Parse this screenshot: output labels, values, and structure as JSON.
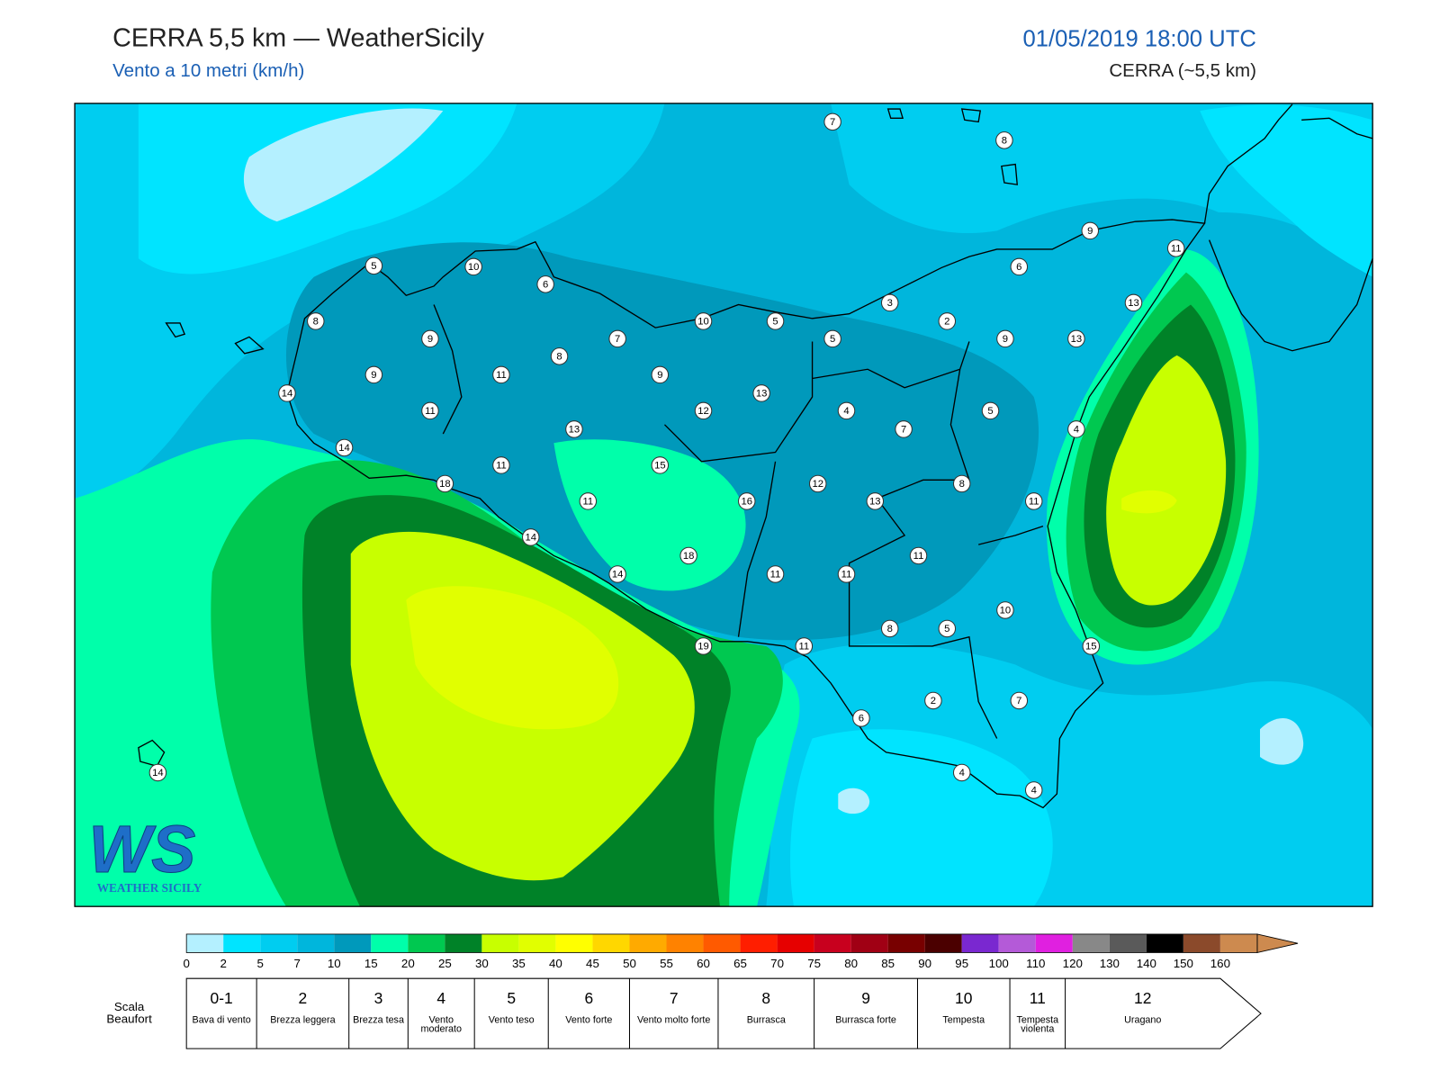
{
  "header": {
    "title": "CERRA 5,5 km — WeatherSicily",
    "subtitle": "Vento a 10 metri (km/h)",
    "datetime": "01/05/2019 18:00 UTC",
    "model": "CERRA (~5,5 km)"
  },
  "logo": {
    "letters": "WS",
    "name": "WEATHER SICILY"
  },
  "stations": [
    7,
    8,
    9,
    11,
    5,
    10,
    6,
    6,
    3,
    13,
    8,
    10,
    5,
    2,
    9,
    7,
    5,
    9,
    13,
    8,
    9,
    11,
    9,
    14,
    11,
    12,
    13,
    4,
    5,
    13,
    7,
    4,
    14,
    15,
    11,
    18,
    12,
    8,
    11,
    16,
    13,
    11,
    14,
    18,
    11,
    14,
    11,
    11,
    10,
    8,
    5,
    15,
    19,
    11,
    2,
    7,
    6,
    4,
    4,
    14
  ],
  "colorbar": {
    "ticks": [
      0,
      2,
      5,
      7,
      10,
      15,
      20,
      25,
      30,
      35,
      40,
      45,
      50,
      55,
      60,
      65,
      70,
      75,
      80,
      85,
      90,
      95,
      100,
      110,
      120,
      130,
      140,
      150,
      160
    ],
    "colors": [
      "#b4f0ff",
      "#00e4ff",
      "#00cdf0",
      "#00b6dc",
      "#0099bb",
      "#00ffaa",
      "#00c850",
      "#008228",
      "#c8ff00",
      "#e1ff00",
      "#ffff00",
      "#ffd700",
      "#ffaa00",
      "#ff8200",
      "#ff5a00",
      "#ff1e00",
      "#e60000",
      "#c8001e",
      "#a00014",
      "#780000",
      "#4b0000",
      "#7a28d0",
      "#b45ad8",
      "#e020e0",
      "#888888",
      "#5a5a5a",
      "#000000",
      "#8b4a2b",
      "#cd8a4f"
    ],
    "extend_color": "#cd8a4f"
  },
  "beaufort": {
    "label": "Scala Beaufort",
    "levels": [
      {
        "force": "0-1",
        "description": "Bava di vento"
      },
      {
        "force": 2,
        "description": "Brezza leggera"
      },
      {
        "force": 3,
        "description": "Brezza tesa"
      },
      {
        "force": 4,
        "description": "Vento moderato"
      },
      {
        "force": 5,
        "description": "Vento teso"
      },
      {
        "force": 6,
        "description": "Vento forte"
      },
      {
        "force": 7,
        "description": "Vento molto forte"
      },
      {
        "force": 8,
        "description": "Burrasca"
      },
      {
        "force": 9,
        "description": "Burrasca forte"
      },
      {
        "force": 10,
        "description": "Tempesta"
      },
      {
        "force": 11,
        "description": "Tempesta violenta"
      },
      {
        "force": 12,
        "description": "Uragano"
      }
    ]
  }
}
